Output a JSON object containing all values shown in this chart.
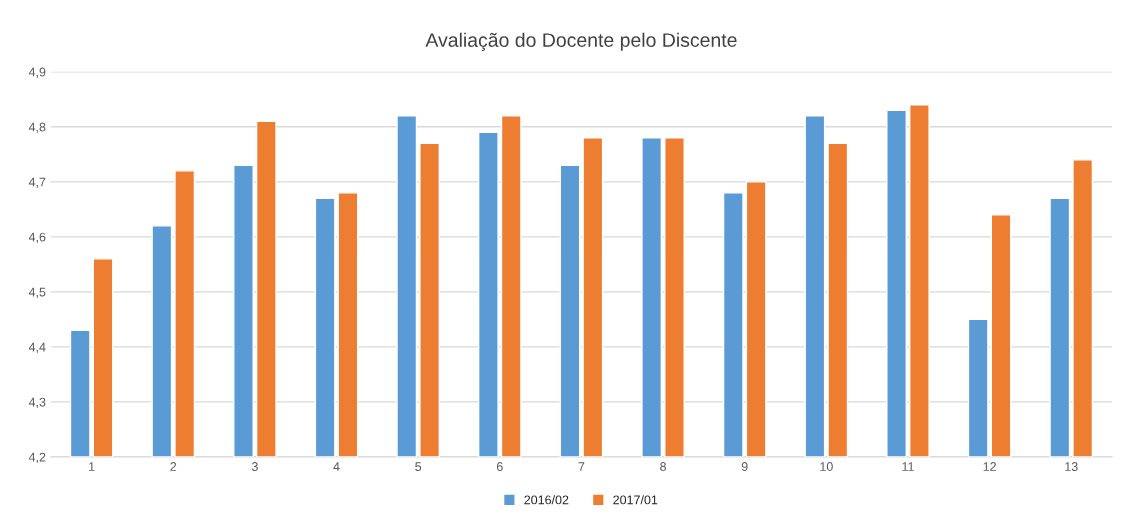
{
  "chart_data": {
    "type": "bar",
    "title": "Avaliação do Docente pelo Discente",
    "categories": [
      "1",
      "2",
      "3",
      "4",
      "5",
      "6",
      "7",
      "8",
      "9",
      "10",
      "11",
      "12",
      "13"
    ],
    "series": [
      {
        "name": "2016/02",
        "color": "#5b9bd5",
        "values": [
          4.43,
          4.62,
          4.73,
          4.67,
          4.82,
          4.79,
          4.73,
          4.78,
          4.68,
          4.82,
          4.83,
          4.45,
          4.67
        ]
      },
      {
        "name": "2017/01",
        "color": "#ed7d31",
        "values": [
          4.56,
          4.72,
          4.81,
          4.68,
          4.77,
          4.82,
          4.78,
          4.78,
          4.7,
          4.77,
          4.84,
          4.64,
          4.74
        ]
      }
    ],
    "ylim": [
      4.2,
      4.9
    ],
    "yticks": [
      {
        "value": 4.2,
        "label": "4,2"
      },
      {
        "value": 4.3,
        "label": "4,3"
      },
      {
        "value": 4.4,
        "label": "4,4"
      },
      {
        "value": 4.5,
        "label": "4,5"
      },
      {
        "value": 4.6,
        "label": "4,6"
      },
      {
        "value": 4.7,
        "label": "4,7"
      },
      {
        "value": 4.8,
        "label": "4,8"
      },
      {
        "value": 4.9,
        "label": "4,9"
      }
    ],
    "grid": "y",
    "legend": "bottom"
  }
}
